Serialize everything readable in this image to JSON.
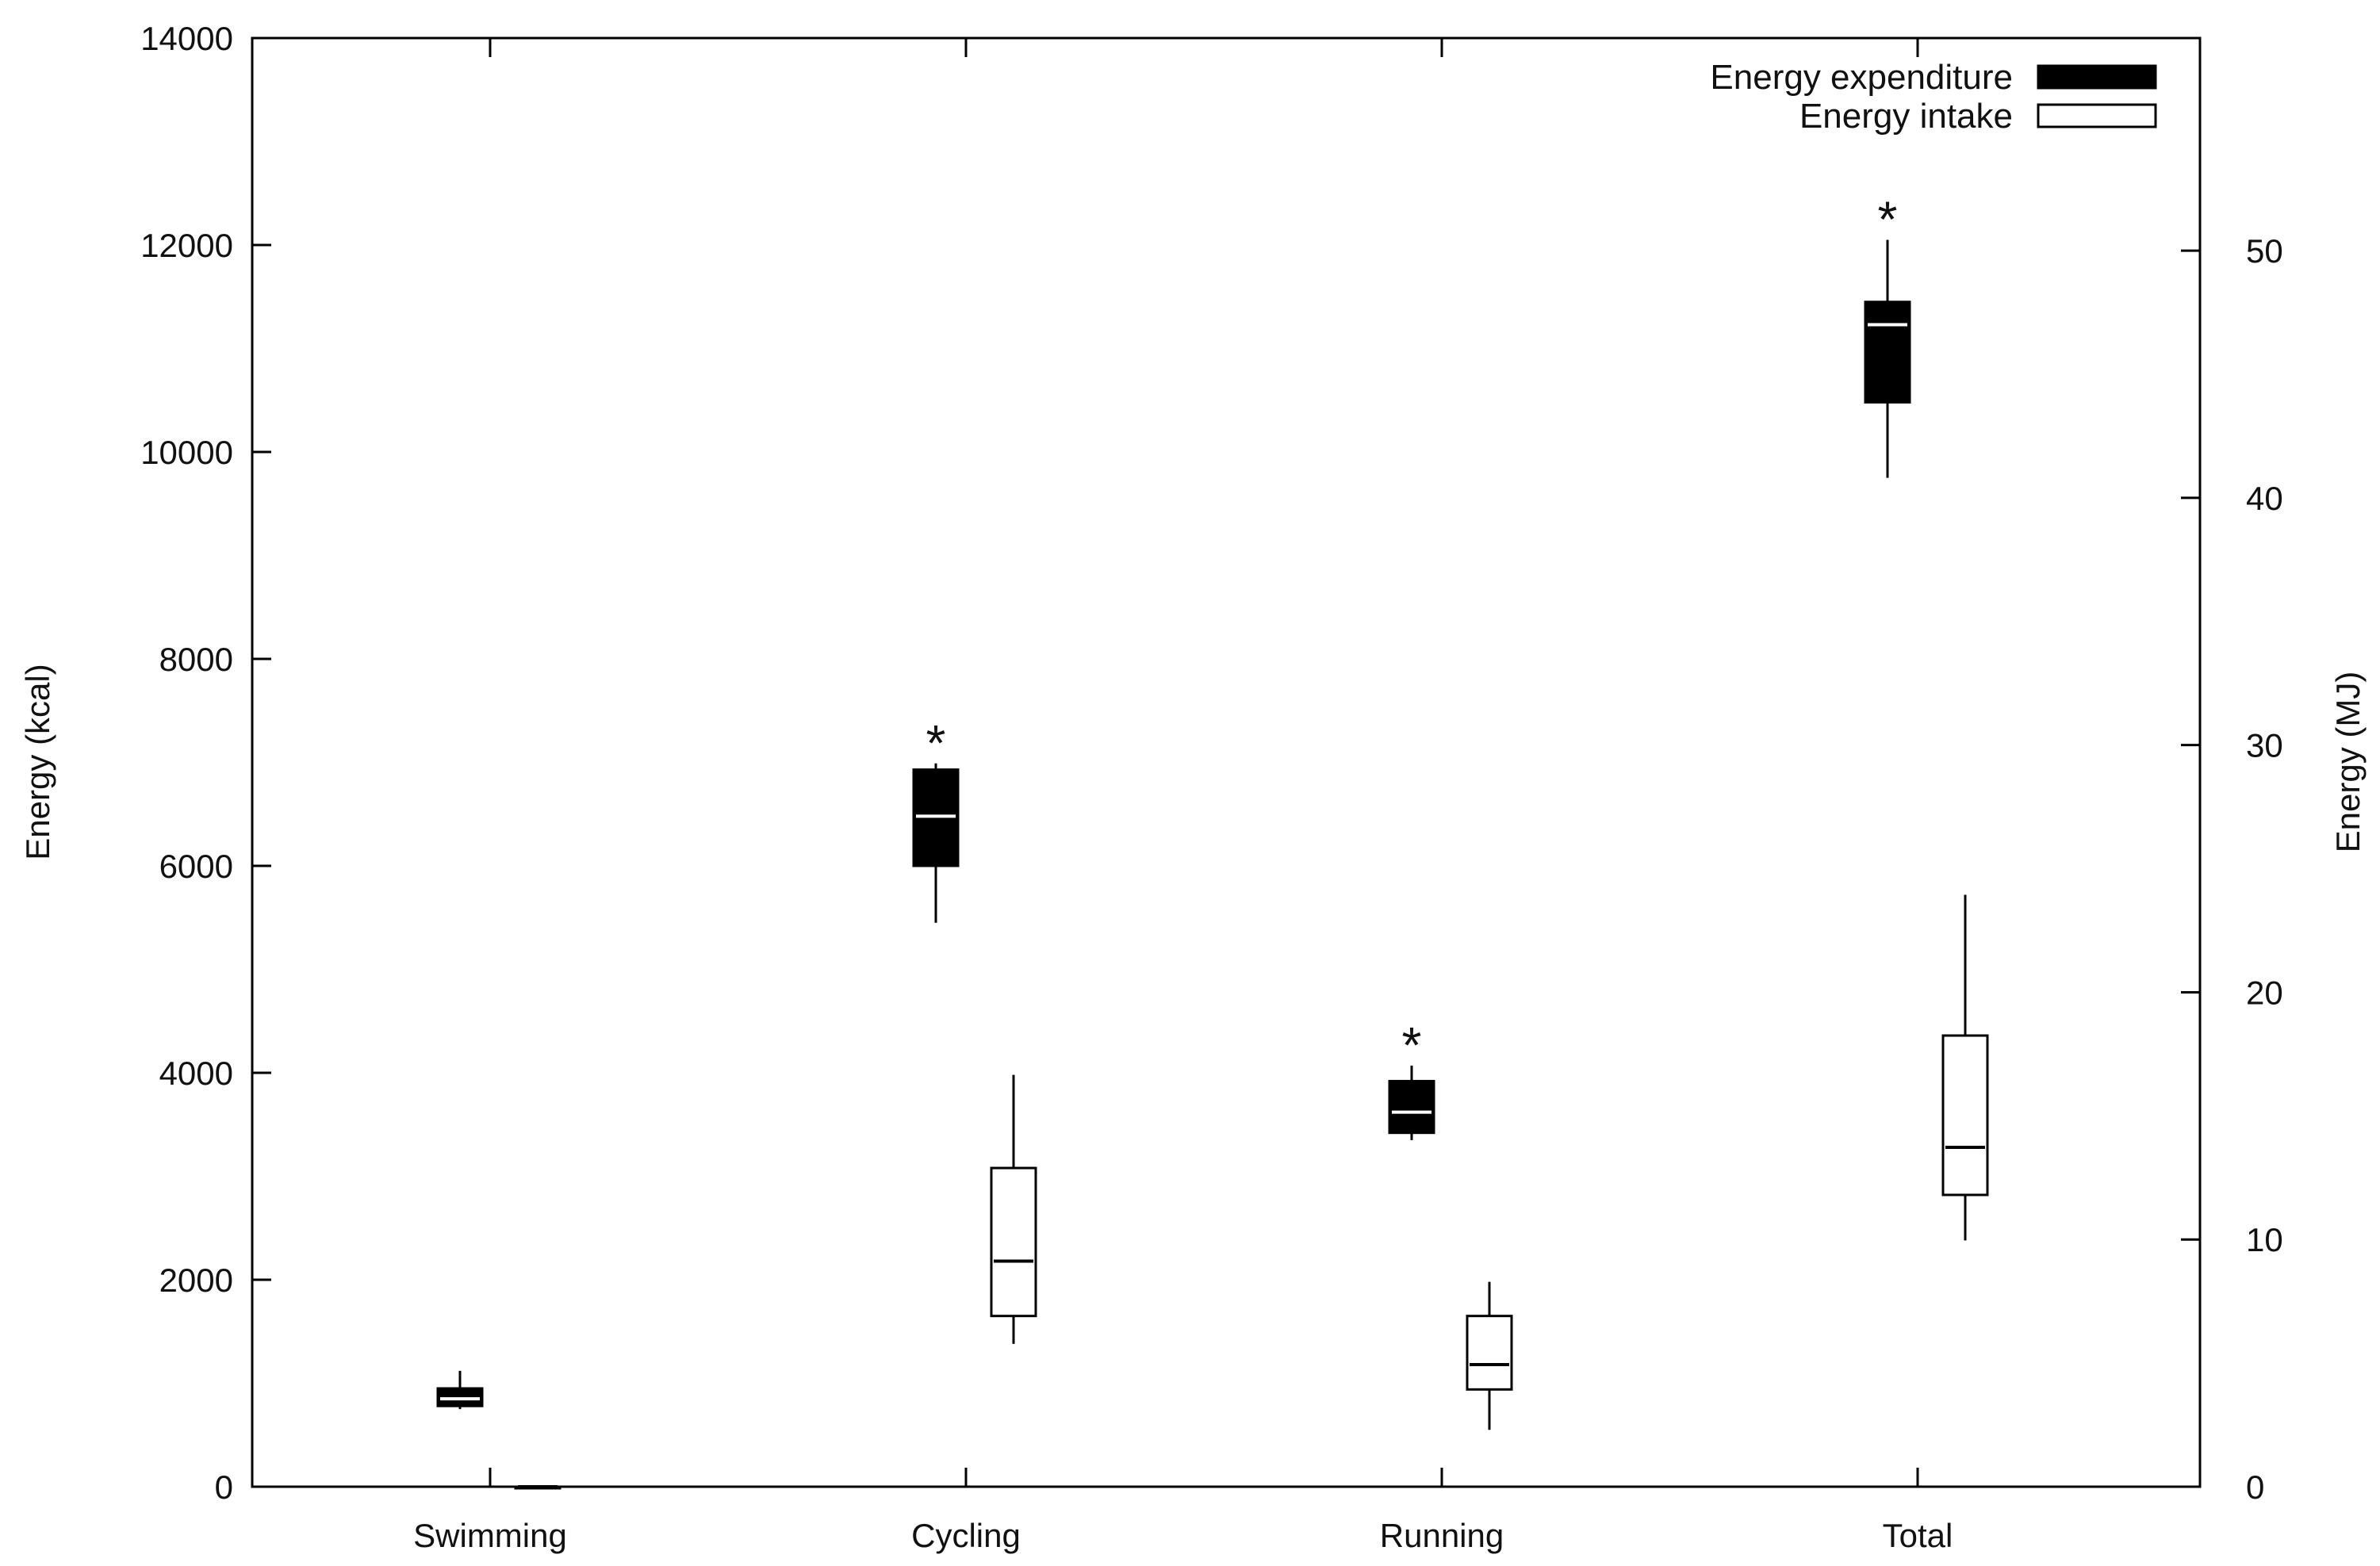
{
  "chart_data": {
    "type": "boxplot",
    "title": "",
    "xlabel": "",
    "ylabel": "Energy (kcal)",
    "y2label": "Energy (MJ)",
    "ylim": [
      0,
      14000
    ],
    "y_ticks": [
      "0",
      "2000",
      "4000",
      "6000",
      "8000",
      "10000",
      "12000",
      "14000"
    ],
    "y_tick_values": [
      0,
      2000,
      4000,
      6000,
      8000,
      10000,
      12000,
      14000
    ],
    "y2lim": [
      0,
      58.6
    ],
    "y2_ticks": [
      "0",
      "10",
      "20",
      "30",
      "40",
      "50"
    ],
    "y2_tick_values": [
      0,
      10,
      20,
      30,
      40,
      50
    ],
    "categories": [
      "Swimming",
      "Cycling",
      "Running",
      "Total"
    ],
    "legend_position": "top-right",
    "significance_marker": "*",
    "series": [
      {
        "name": "Energy expenditure",
        "fill": "#000000",
        "median_color": "#ffffff",
        "boxes": [
          {
            "category": "Swimming",
            "whisker_low": 750,
            "q1": 780,
            "median": 850,
            "q3": 950,
            "whisker_high": 1120,
            "significant": false
          },
          {
            "category": "Cycling",
            "whisker_low": 5450,
            "q1": 6000,
            "median": 6480,
            "q3": 6930,
            "whisker_high": 6990,
            "significant": true
          },
          {
            "category": "Running",
            "whisker_low": 3350,
            "q1": 3420,
            "median": 3620,
            "q3": 3920,
            "whisker_high": 4070,
            "significant": true
          },
          {
            "category": "Total",
            "whisker_low": 9750,
            "q1": 10480,
            "median": 11230,
            "q3": 11450,
            "whisker_high": 12050,
            "significant": true
          }
        ]
      },
      {
        "name": "Energy intake",
        "fill": "#ffffff",
        "median_color": "#000000",
        "boxes": [
          {
            "category": "Swimming",
            "whisker_low": 0,
            "q1": 0,
            "median": 0,
            "q3": 0,
            "whisker_high": 0,
            "significant": false
          },
          {
            "category": "Cycling",
            "whisker_low": 1380,
            "q1": 1650,
            "median": 2180,
            "q3": 3080,
            "whisker_high": 3980,
            "significant": false
          },
          {
            "category": "Running",
            "whisker_low": 550,
            "q1": 940,
            "median": 1180,
            "q3": 1650,
            "whisker_high": 1980,
            "significant": false
          },
          {
            "category": "Total",
            "whisker_low": 2380,
            "q1": 2820,
            "median": 3280,
            "q3": 4360,
            "whisker_high": 5720,
            "significant": false
          }
        ]
      }
    ]
  }
}
